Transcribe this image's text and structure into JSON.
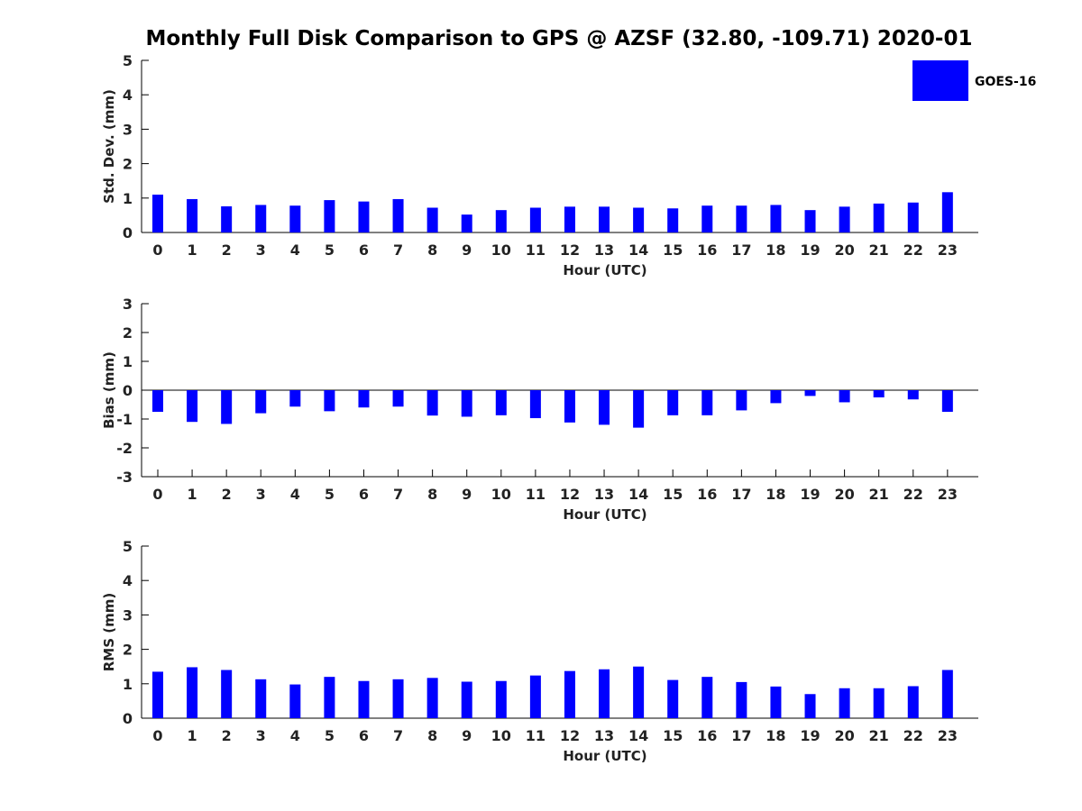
{
  "figure": {
    "title": "Monthly Full Disk Comparison to GPS @ AZSF (32.80, -109.71) 2020-01",
    "legend_label": "GOES-16",
    "bar_color": "#0000ff"
  },
  "chart_data": [
    {
      "type": "bar",
      "title": "",
      "xlabel": "Hour (UTC)",
      "ylabel": "Std. Dev. (mm)",
      "ylim": [
        0,
        5
      ],
      "yticks": [
        0,
        1,
        2,
        3,
        4,
        5
      ],
      "categories": [
        "0",
        "1",
        "2",
        "3",
        "4",
        "5",
        "6",
        "7",
        "8",
        "9",
        "10",
        "11",
        "12",
        "13",
        "14",
        "15",
        "16",
        "17",
        "18",
        "19",
        "20",
        "21",
        "22",
        "23"
      ],
      "series": [
        {
          "name": "GOES-16",
          "values": [
            1.1,
            0.97,
            0.76,
            0.8,
            0.78,
            0.94,
            0.9,
            0.97,
            0.72,
            0.52,
            0.65,
            0.72,
            0.75,
            0.75,
            0.72,
            0.7,
            0.78,
            0.78,
            0.8,
            0.65,
            0.75,
            0.84,
            0.87,
            1.17
          ]
        }
      ],
      "legend": "top-right"
    },
    {
      "type": "bar",
      "title": "",
      "xlabel": "Hour (UTC)",
      "ylabel": "Bias (mm)",
      "ylim": [
        -3,
        3
      ],
      "yticks": [
        -3,
        -2,
        -1,
        0,
        1,
        2,
        3
      ],
      "categories": [
        "0",
        "1",
        "2",
        "3",
        "4",
        "5",
        "6",
        "7",
        "8",
        "9",
        "10",
        "11",
        "12",
        "13",
        "14",
        "15",
        "16",
        "17",
        "18",
        "19",
        "20",
        "21",
        "22",
        "23"
      ],
      "series": [
        {
          "name": "GOES-16",
          "values": [
            -0.75,
            -1.1,
            -1.17,
            -0.8,
            -0.57,
            -0.73,
            -0.6,
            -0.57,
            -0.88,
            -0.92,
            -0.87,
            -0.97,
            -1.12,
            -1.2,
            -1.3,
            -0.87,
            -0.87,
            -0.7,
            -0.45,
            -0.2,
            -0.42,
            -0.25,
            -0.32,
            -0.75
          ]
        }
      ]
    },
    {
      "type": "bar",
      "title": "",
      "xlabel": "Hour (UTC)",
      "ylabel": "RMS (mm)",
      "ylim": [
        0,
        5
      ],
      "yticks": [
        0,
        1,
        2,
        3,
        4,
        5
      ],
      "categories": [
        "0",
        "1",
        "2",
        "3",
        "4",
        "5",
        "6",
        "7",
        "8",
        "9",
        "10",
        "11",
        "12",
        "13",
        "14",
        "15",
        "16",
        "17",
        "18",
        "19",
        "20",
        "21",
        "22",
        "23"
      ],
      "series": [
        {
          "name": "GOES-16",
          "values": [
            1.35,
            1.48,
            1.4,
            1.13,
            0.98,
            1.2,
            1.08,
            1.13,
            1.17,
            1.06,
            1.08,
            1.24,
            1.37,
            1.42,
            1.5,
            1.11,
            1.2,
            1.05,
            0.92,
            0.7,
            0.87,
            0.87,
            0.93,
            1.4
          ]
        }
      ]
    }
  ]
}
